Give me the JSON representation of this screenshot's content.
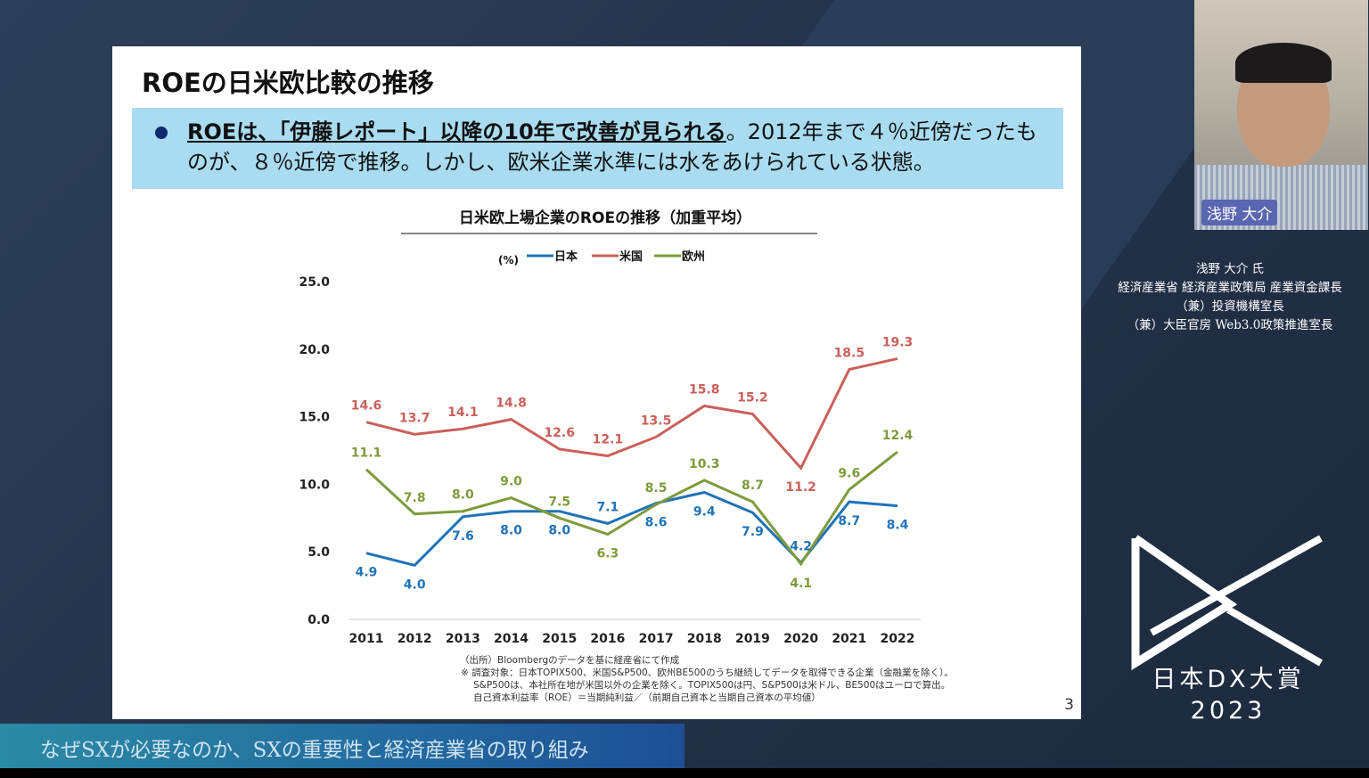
{
  "slide": {
    "title": "ROEの日米欧比較の推移",
    "bullet_strong": "ROEは、「伊藤レポート」以降の10年で改善が見られる",
    "bullet_rest": "。2012年まで４％近傍だったものが、８％近傍で推移。しかし、欧米企業水準には水をあけられている状態。",
    "footnotes": [
      "（出所）Bloombergのデータを基に経産省にて作成",
      "※ 調査対象：日本TOPIX500、米国S&P500、欧州BE500のうち継続してデータを取得できる企業（金融業を除く）。",
      "S&P500は、本社所在地が米国以外の企業を除く。TOPIX500は円、S&P500は米ドル、BE500はユーロで算出。",
      "自己資本利益率（ROE）＝当期純利益／（前期自己資本と当期自己資本の平均値）"
    ],
    "page_number": "3"
  },
  "chart_data": {
    "type": "line",
    "title": "日米欧上場企業のROEの推移（加重平均）",
    "ylabel": "(%)",
    "ylim": [
      0,
      25
    ],
    "yticks": [
      "0.0",
      "5.0",
      "10.0",
      "15.0",
      "20.0",
      "25.0"
    ],
    "grid": false,
    "legend_position": "top",
    "categories": [
      "2011",
      "2012",
      "2013",
      "2014",
      "2015",
      "2016",
      "2017",
      "2018",
      "2019",
      "2020",
      "2021",
      "2022"
    ],
    "series": [
      {
        "name": "日本",
        "color": "#1f73b7",
        "values": [
          4.9,
          4.0,
          7.6,
          8.0,
          8.0,
          7.1,
          8.6,
          9.4,
          7.9,
          4.2,
          8.7,
          8.4
        ]
      },
      {
        "name": "米国",
        "color": "#c9605a",
        "values": [
          14.6,
          13.7,
          14.1,
          14.8,
          12.6,
          12.1,
          13.5,
          15.8,
          15.2,
          11.2,
          18.5,
          19.3
        ]
      },
      {
        "name": "欧州",
        "color": "#7f9a3c",
        "values": [
          11.1,
          7.8,
          8.0,
          9.0,
          7.5,
          6.3,
          8.5,
          10.3,
          8.7,
          4.1,
          9.6,
          12.4
        ]
      }
    ]
  },
  "webcam": {
    "name_tag": "浅野 大介"
  },
  "speaker": {
    "lines": [
      "浅野 大介 氏",
      "経済産業省 経済産業政策局 産業資金課長",
      "（兼）投資機構室長",
      "（兼）大臣官房 Web3.0政策推進室長"
    ]
  },
  "event": {
    "logo_text": "日本DX大賞",
    "year": "2023"
  },
  "session_title": "なぜSXが必要なのか、SXの重要性と経済産業省の取り組み"
}
